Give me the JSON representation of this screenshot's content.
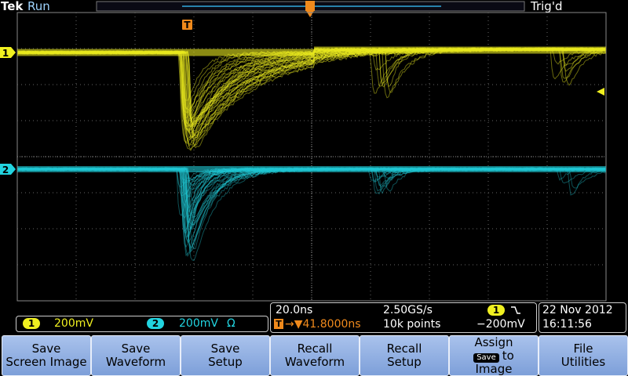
{
  "header": {
    "brand": "Tek",
    "state": "Run",
    "trigger_status": "Trig'd",
    "trigger_marker": "T"
  },
  "channels": [
    {
      "marker": "1",
      "scale": "200mV"
    },
    {
      "marker": "2",
      "scale": "200mV",
      "impedance": "Ω"
    }
  ],
  "timebase": {
    "scale": "20.0ns",
    "position_marker": "T",
    "position": "→▼41.8000ns",
    "sample_rate": "2.50GS/s",
    "record_length": "10k points"
  },
  "trigger": {
    "source": "1",
    "level": "−200mV"
  },
  "datetime": {
    "date": "22 Nov 2012",
    "time": "16:11:56"
  },
  "menu": [
    {
      "line1": "Save",
      "line2": "Screen Image"
    },
    {
      "line1": "Save",
      "line2": "Waveform"
    },
    {
      "line1": "Save",
      "line2": "Setup"
    },
    {
      "line1": "Recall",
      "line2": "Waveform"
    },
    {
      "line1": "Recall",
      "line2": "Setup"
    },
    {
      "line1": "Assign",
      "chip": "Save",
      "line2": "to",
      "line3": "Image"
    },
    {
      "line1": "File",
      "line2": "Utilities"
    }
  ]
}
